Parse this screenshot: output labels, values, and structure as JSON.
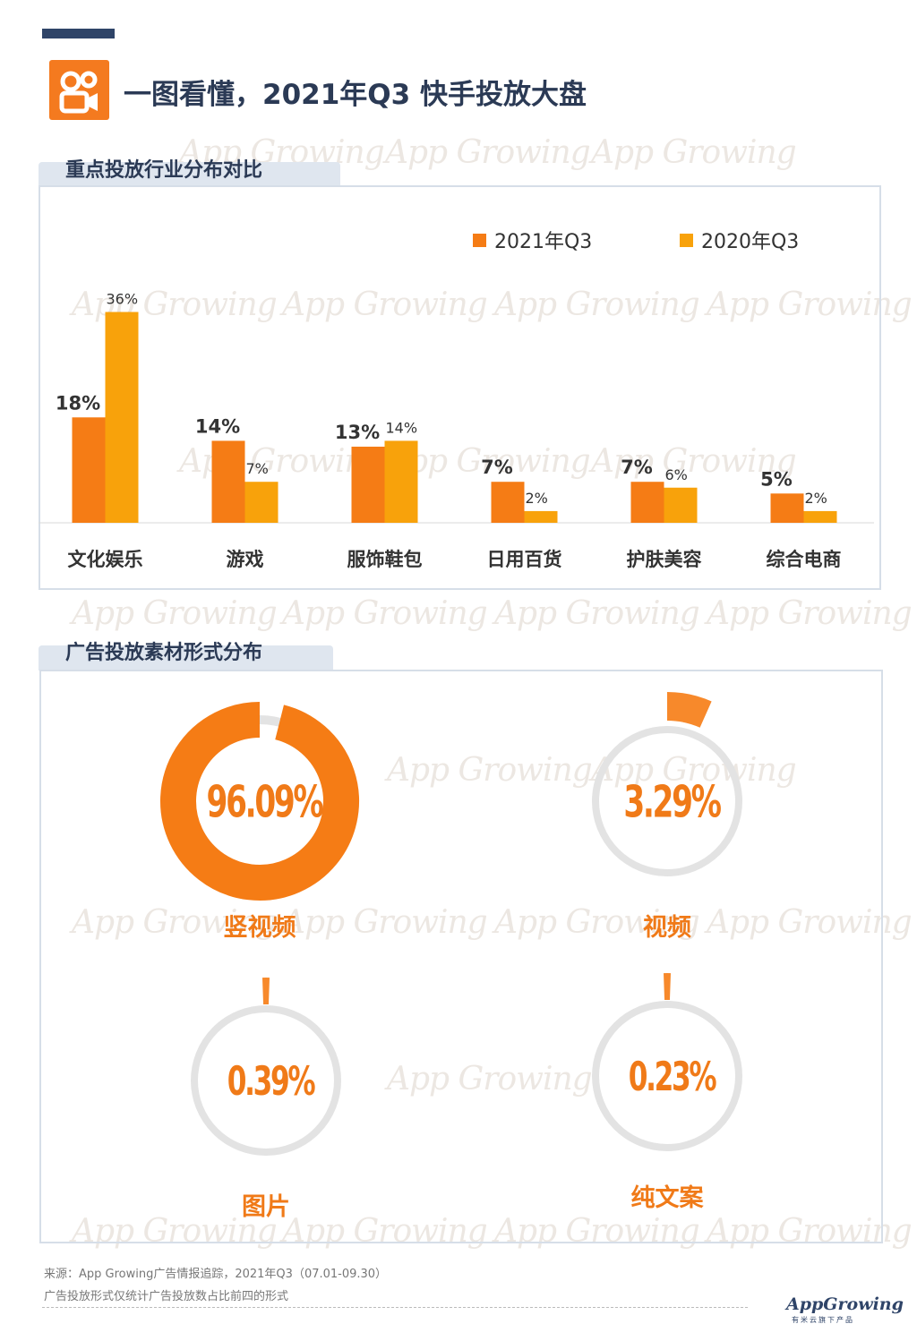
{
  "title": "一图看懂，2021年Q3 快手投放大盘",
  "logo_icon": "kuaishou-logo-icon",
  "colors": {
    "q3_2021": "#f57c15",
    "q3_2020": "#f8a20b",
    "accent_text": "#f07a18",
    "ring_track": "#e3e3e3",
    "heading": "#2b3a55"
  },
  "watermark": "App Growing",
  "section1": {
    "title": "重点投放行业分布对比"
  },
  "section2": {
    "title": "广告投放素材形式分布"
  },
  "chart_data": [
    {
      "type": "bar",
      "title": "重点投放行业分布对比",
      "categories": [
        "文化娱乐",
        "游戏",
        "服饰鞋包",
        "日用百货",
        "护肤美容",
        "综合电商"
      ],
      "series": [
        {
          "name": "2021年Q3",
          "values": [
            18,
            14,
            13,
            7,
            7,
            5
          ],
          "labels": [
            "18%",
            "14%",
            "13%",
            "7%",
            "7%",
            "5%"
          ],
          "color": "#f57c15"
        },
        {
          "name": "2020年Q3",
          "values": [
            36,
            7,
            14,
            2,
            6,
            2
          ],
          "labels": [
            "36%",
            "7%",
            "14%",
            "2%",
            "6%",
            "2%"
          ],
          "color": "#f8a20b"
        }
      ],
      "ylim": [
        0,
        40
      ],
      "legend": "top-right",
      "grid": false
    },
    {
      "type": "pie",
      "title": "广告投放素材形式分布",
      "categories": [
        "竖视频",
        "视频",
        "图片",
        "纯文案"
      ],
      "values": [
        96.09,
        3.29,
        0.39,
        0.23
      ],
      "labels": [
        "96.09%",
        "3.29%",
        "0.39%",
        "0.23%"
      ]
    }
  ],
  "footer": {
    "source": "来源：App Growing广告情报追踪，2021年Q3（07.01-09.30）",
    "note": "广告投放形式仅统计广告投放数占比前四的形式",
    "brand": "AppGrowing",
    "brand_sub": "有米云旗下产品"
  }
}
